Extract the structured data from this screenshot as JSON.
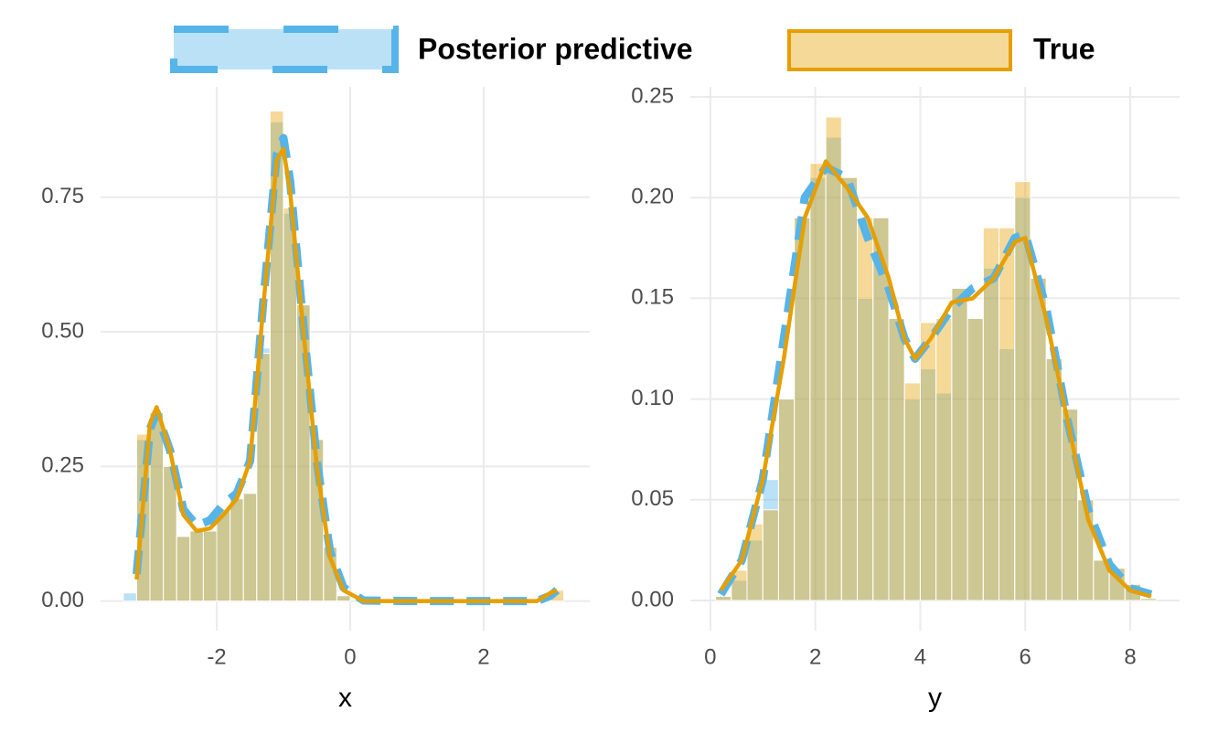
{
  "chart_data": {
    "type": "histogram",
    "series": [
      {
        "name": "Posterior predictive",
        "color": "#56b4e9",
        "linestyle": "dashed"
      },
      {
        "name": "True",
        "color": "#e69f00",
        "linestyle": "solid"
      }
    ],
    "grid": true,
    "panels": [
      {
        "xlabel": "x",
        "xlim": [
          -3.74,
          3.59
        ],
        "ylim": [
          -0.055,
          0.955
        ],
        "xticks": [
          -2,
          0,
          2
        ],
        "yticks": [
          {
            "value": 0,
            "label": "0.00"
          },
          {
            "value": 0.25,
            "label": "0.25"
          },
          {
            "value": 0.5,
            "label": "0.50"
          },
          {
            "value": 0.75,
            "label": "0.75"
          }
        ],
        "bins": [
          -3.4,
          -3.2,
          -3.0,
          -2.8,
          -2.6,
          -2.4,
          -2.2,
          -2.0,
          -1.8,
          -1.6,
          -1.4,
          -1.2,
          -1.0,
          -0.8,
          -0.6,
          -0.4,
          -0.2,
          0,
          0.2,
          0.4,
          0.6,
          0.8,
          1.0,
          1.2,
          1.4,
          1.6,
          1.8,
          2.0,
          2.2,
          2.4,
          2.6,
          2.8,
          3.0,
          3.2
        ],
        "hist": [
          [
            0.015,
            0.3,
            0.35,
            0.25,
            0.12,
            0.13,
            0.13,
            0.17,
            0.19,
            0.2,
            0.47,
            0.89,
            0.72,
            0.55,
            0.3,
            0.1,
            0.01,
            0,
            0,
            0,
            0,
            0,
            0,
            0,
            0,
            0,
            0,
            0,
            0,
            0,
            0,
            0,
            0
          ],
          [
            0,
            0.31,
            0.35,
            0.25,
            0.12,
            0.13,
            0.13,
            0.17,
            0.19,
            0.2,
            0.46,
            0.91,
            0.73,
            0.55,
            0.3,
            0.1,
            0.01,
            0,
            0,
            0,
            0,
            0,
            0,
            0,
            0,
            0,
            0,
            0,
            0,
            0,
            0,
            0,
            0.02
          ]
        ],
        "density": {
          "x": [
            -3.2,
            -3.0,
            -2.9,
            -2.7,
            -2.5,
            -2.3,
            -2.1,
            -1.9,
            -1.7,
            -1.5,
            -1.3,
            -1.1,
            -1.0,
            -0.9,
            -0.7,
            -0.5,
            -0.3,
            -0.1,
            0.2,
            1.0,
            2.0,
            2.8,
            3.0,
            3.1
          ],
          "values": [
            [
              0.05,
              0.32,
              0.35,
              0.28,
              0.17,
              0.14,
              0.15,
              0.18,
              0.2,
              0.26,
              0.56,
              0.83,
              0.86,
              0.78,
              0.51,
              0.26,
              0.09,
              0.025,
              0.001,
              0,
              0,
              0,
              0.01,
              0.02
            ],
            [
              0.04,
              0.33,
              0.36,
              0.28,
              0.16,
              0.13,
              0.135,
              0.16,
              0.19,
              0.26,
              0.55,
              0.82,
              0.84,
              0.76,
              0.5,
              0.25,
              0.08,
              0.02,
              0,
              0,
              0,
              0,
              0.015,
              0.02
            ]
          ]
        }
      },
      {
        "xlabel": "y",
        "xlim": [
          -0.38,
          8.94
        ],
        "ylim": [
          -0.015,
          0.255
        ],
        "xticks": [
          0,
          2,
          4,
          6,
          8
        ],
        "yticks": [
          {
            "value": 0,
            "label": "0.00"
          },
          {
            "value": 0.05,
            "label": "0.05"
          },
          {
            "value": 0.1,
            "label": "0.10"
          },
          {
            "value": 0.15,
            "label": "0.15"
          },
          {
            "value": 0.2,
            "label": "0.20"
          },
          {
            "value": 0.25,
            "label": "0.25"
          }
        ],
        "bins": [
          0.1,
          0.4,
          0.7,
          1.0,
          1.3,
          1.6,
          1.9,
          2.2,
          2.5,
          2.8,
          3.1,
          3.4,
          3.7,
          4.0,
          4.3,
          4.6,
          4.9,
          5.2,
          5.5,
          5.8,
          6.1,
          6.4,
          6.7,
          7.0,
          7.3,
          7.6,
          7.9,
          8.2,
          8.5
        ],
        "hist": [
          [
            0.002,
            0.01,
            0.03,
            0.06,
            0.1,
            0.19,
            0.21,
            0.23,
            0.21,
            0.15,
            0.19,
            0.14,
            0.1,
            0.115,
            0.103,
            0.155,
            0.14,
            0.165,
            0.125,
            0.2,
            0.16,
            0.12,
            0.095,
            0.05,
            0.02,
            0.016,
            0.008,
            0.001
          ],
          [
            0.002,
            0.015,
            0.038,
            0.045,
            0.1,
            0.19,
            0.217,
            0.24,
            0.21,
            0.19,
            0.19,
            0.14,
            0.108,
            0.138,
            0.14,
            0.155,
            0.14,
            0.185,
            0.185,
            0.208,
            0.16,
            0.12,
            0.095,
            0.05,
            0.02,
            0.016,
            0.008,
            0.001
          ]
        ],
        "density": {
          "x": [
            0.2,
            0.6,
            1.0,
            1.4,
            1.8,
            2.2,
            2.6,
            3.0,
            3.4,
            3.7,
            3.9,
            4.2,
            4.6,
            5.0,
            5.4,
            5.8,
            6.0,
            6.4,
            6.8,
            7.2,
            7.6,
            8.0,
            8.4
          ],
          "values": [
            [
              0.003,
              0.02,
              0.06,
              0.13,
              0.2,
              0.215,
              0.21,
              0.18,
              0.155,
              0.13,
              0.12,
              0.13,
              0.145,
              0.155,
              0.16,
              0.18,
              0.182,
              0.145,
              0.09,
              0.045,
              0.018,
              0.006,
              0.003
            ],
            [
              0.005,
              0.02,
              0.06,
              0.12,
              0.19,
              0.218,
              0.205,
              0.19,
              0.16,
              0.13,
              0.12,
              0.13,
              0.148,
              0.15,
              0.16,
              0.178,
              0.18,
              0.14,
              0.09,
              0.04,
              0.015,
              0.005,
              0.002
            ]
          ]
        }
      }
    ]
  }
}
